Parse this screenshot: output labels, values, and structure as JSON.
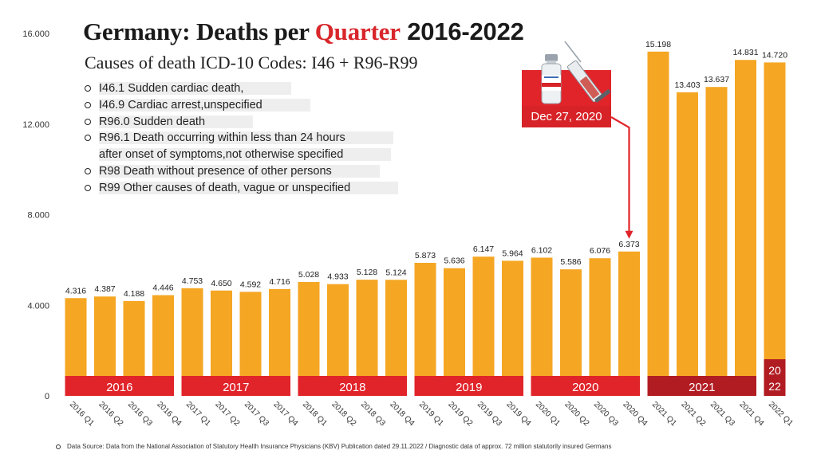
{
  "title_parts": {
    "a": "Germany: Deaths per ",
    "b": "Quarter",
    "c": " 2016-2022"
  },
  "subtitle": "Causes of death ICD-10 Codes: I46 + R96-R99",
  "codes": [
    "I46.1 Sudden cardiac death,",
    "I46.9 Cardiac arrest,unspecified",
    "R96.0 Sudden death",
    "R96.1 Death occurring within less than 24 hours",
    "after onset of symptoms,not otherwise specified",
    "R98 Death without presence of other persons",
    "R99 Other causes of death, vague or unspecified"
  ],
  "annotation": {
    "label": "Dec 27, 2020"
  },
  "source": "Data Source: Data from the National Association of Statutory Health Insurance Physicians (KBV) Publication dated 29.11.2022 / Diagnostic data of approx. 72 million statutorily insured Germans",
  "colors": {
    "bar": "#f5a623",
    "year_band": "#e0242a",
    "year_band_2021": "#b11c22",
    "arrow": "#e0242a"
  },
  "icons": [
    "vaccine-vial-icon",
    "syringe-icon"
  ],
  "chart_data": {
    "type": "bar",
    "categories": [
      "2016 Q1",
      "2016 Q2",
      "2016 Q3",
      "2016 Q4",
      "2017 Q1",
      "2017 Q2",
      "2017 Q3",
      "2017 Q4",
      "2018 Q1",
      "2018 Q2",
      "2018 Q3",
      "2018 Q4",
      "2019 Q1",
      "2019 Q2",
      "2019 Q3",
      "2019 Q4",
      "2020 Q1",
      "2020 Q2",
      "2020 Q3",
      "2020 Q4",
      "2021 Q1",
      "2021 Q2",
      "2021 Q3",
      "2021 Q4",
      "2022 Q1"
    ],
    "values": [
      4316,
      4387,
      4188,
      4446,
      4753,
      4650,
      4592,
      4716,
      5028,
      4933,
      5128,
      5124,
      5873,
      5636,
      6147,
      5964,
      6102,
      5586,
      6076,
      6373,
      15198,
      13403,
      13637,
      14831,
      14720
    ],
    "value_labels": [
      "4.316",
      "4.387",
      "4.188",
      "4.446",
      "4.753",
      "4.650",
      "4.592",
      "4.716",
      "5.028",
      "4.933",
      "5.128",
      "5.124",
      "5.873",
      "5.636",
      "6.147",
      "5.964",
      "6.102",
      "5.586",
      "6.076",
      "6.373",
      "15.198",
      "13.403",
      "13.637",
      "14.831",
      "14.720"
    ],
    "yticks": [
      0,
      4000,
      8000,
      12000,
      16000
    ],
    "ytick_labels": [
      "0",
      "4.000",
      "8.000",
      "12.000",
      "16.000"
    ],
    "ylim": [
      0,
      16000
    ],
    "year_groups": [
      {
        "label": "2016",
        "start": 0,
        "end": 3
      },
      {
        "label": "2017",
        "start": 4,
        "end": 7
      },
      {
        "label": "2018",
        "start": 8,
        "end": 11
      },
      {
        "label": "2019",
        "start": 12,
        "end": 15
      },
      {
        "label": "2020",
        "start": 16,
        "end": 19
      },
      {
        "label": "2021",
        "start": 20,
        "end": 23
      },
      {
        "label": "2022",
        "start": 24,
        "end": 24,
        "lines": [
          "20",
          "22"
        ]
      }
    ],
    "title": "Germany: Deaths per Quarter 2016-2022",
    "xlabel": "",
    "ylabel": "",
    "grid": false
  }
}
